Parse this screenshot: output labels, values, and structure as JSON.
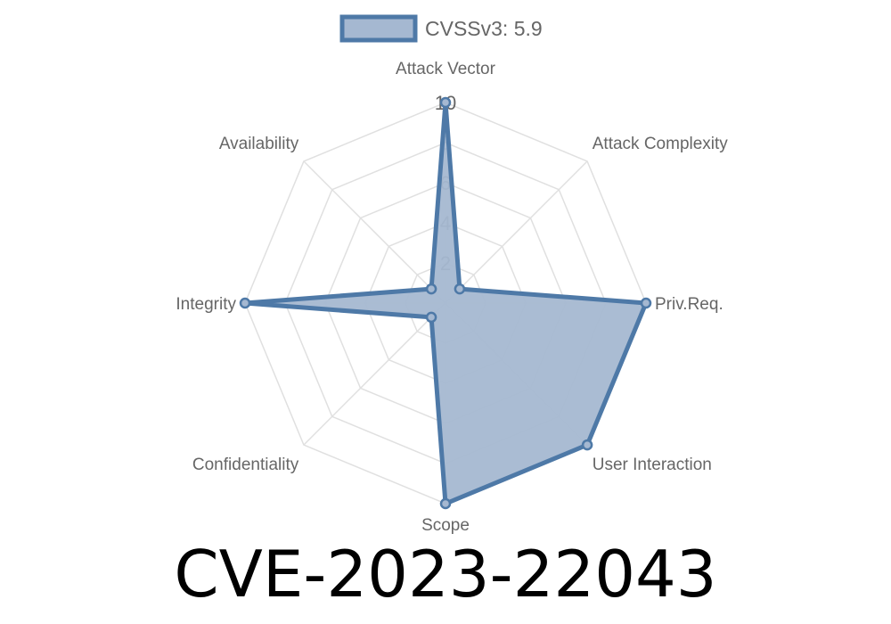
{
  "chart_data": {
    "type": "radar",
    "title": "CVE-2023-22043",
    "axes": [
      "Attack Vector",
      "Attack Complexity",
      "Priv.Req.",
      "User Interaction",
      "Scope",
      "Confidentiality",
      "Integrity",
      "Availability"
    ],
    "series": [
      {
        "name": "CVSSv3: 5.9",
        "values": [
          10,
          1,
          10,
          10,
          10,
          1,
          10,
          1
        ]
      }
    ],
    "rlim": [
      0,
      10
    ],
    "ticks": [
      "2",
      "4",
      "6",
      "8",
      "10"
    ],
    "grid": true,
    "legend_position": "top",
    "colors": {
      "line": "#4e79a7",
      "fill": "#a5b8d1",
      "grid": "#e0e0e0",
      "label": "#666666"
    }
  }
}
